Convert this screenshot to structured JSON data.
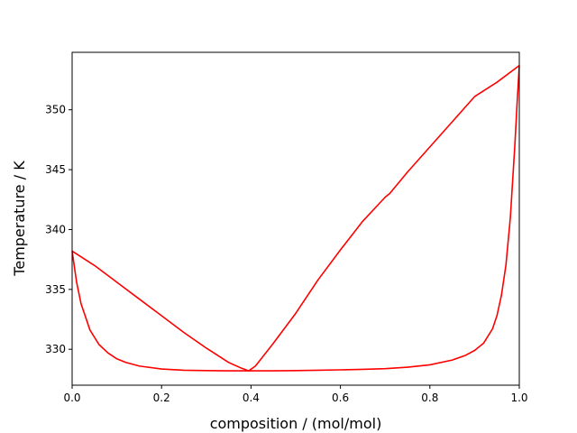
{
  "chart_data": {
    "type": "line",
    "title": "",
    "xlabel": "composition / (mol/mol)",
    "ylabel": "Temperature / K",
    "xlim": [
      0.0,
      1.0
    ],
    "ylim": [
      327.0,
      354.8
    ],
    "grid": false,
    "legend": "none",
    "x_ticks": [
      0.0,
      0.2,
      0.4,
      0.6,
      0.8,
      1.0
    ],
    "x_tick_labels": [
      "0.0",
      "0.2",
      "0.4",
      "0.6",
      "0.8",
      "1.0"
    ],
    "y_ticks": [
      330,
      335,
      340,
      345,
      350
    ],
    "y_tick_labels": [
      "330",
      "335",
      "340",
      "345",
      "350"
    ],
    "line_color": "#ff0000",
    "series": [
      {
        "x": [
          0.0,
          0.01,
          0.02,
          0.04,
          0.06,
          0.08,
          0.1,
          0.12,
          0.15,
          0.2,
          0.25,
          0.3,
          0.35,
          0.39,
          0.4,
          0.45,
          0.5,
          0.55,
          0.6,
          0.65,
          0.7,
          0.75,
          0.8,
          0.85,
          0.88,
          0.9,
          0.92,
          0.94,
          0.95,
          0.96,
          0.97,
          0.98,
          0.985,
          0.99,
          0.995,
          1.0
        ],
        "y": [
          338.2,
          335.6,
          333.8,
          331.6,
          330.4,
          329.7,
          329.2,
          328.9,
          328.6,
          328.35,
          328.25,
          328.22,
          328.2,
          328.2,
          328.2,
          328.2,
          328.22,
          328.25,
          328.28,
          328.32,
          328.38,
          328.5,
          328.7,
          329.1,
          329.5,
          329.9,
          330.5,
          331.7,
          332.8,
          334.5,
          337.0,
          341.0,
          344.0,
          347.0,
          350.5,
          353.7
        ]
      },
      {
        "x": [
          0.0,
          0.05,
          0.1,
          0.15,
          0.2,
          0.25,
          0.3,
          0.35,
          0.38,
          0.395,
          0.41,
          0.45,
          0.5,
          0.55,
          0.6,
          0.65,
          0.7,
          0.71,
          0.75,
          0.8,
          0.85,
          0.9,
          0.95,
          1.0
        ],
        "y": [
          338.2,
          337.0,
          335.6,
          334.2,
          332.8,
          331.4,
          330.1,
          328.9,
          328.4,
          328.2,
          328.6,
          330.5,
          333.0,
          335.8,
          338.3,
          340.7,
          342.7,
          343.0,
          344.8,
          346.9,
          349.0,
          351.1,
          352.3,
          353.7
        ]
      }
    ]
  }
}
